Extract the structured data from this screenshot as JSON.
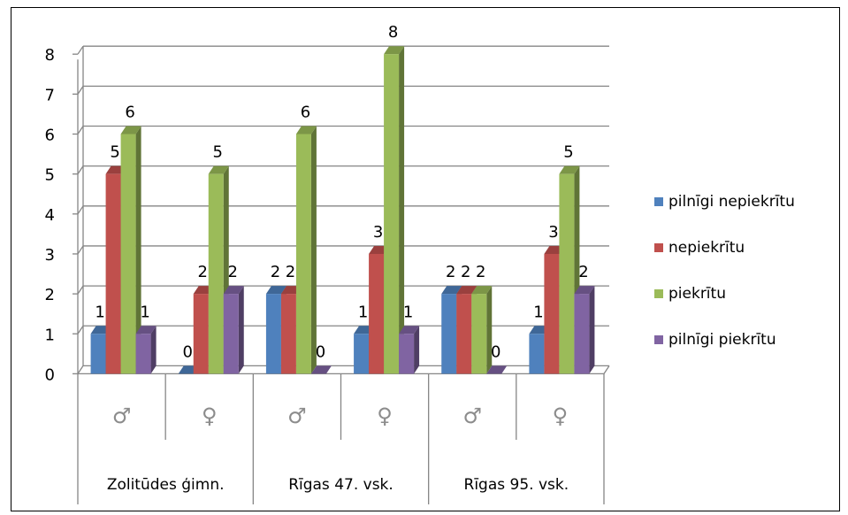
{
  "chart_data": {
    "type": "bar",
    "view": "3d-clustered-column",
    "groups": [
      "Zolitūdes ģimn.",
      "Rīgas 47. vsk.",
      "Rīgas 95. vsk."
    ],
    "subcategories": [
      "♂",
      "♀",
      "♂",
      "♀",
      "♂",
      "♀"
    ],
    "series": [
      {
        "name": "pilnīgi nepiekrītu",
        "color": "#4f81bd",
        "values": [
          1,
          0,
          2,
          1,
          2,
          1
        ]
      },
      {
        "name": "nepiekrītu",
        "color": "#c0504d",
        "values": [
          5,
          2,
          2,
          3,
          2,
          3
        ]
      },
      {
        "name": "piekrītu",
        "color": "#9bbb59",
        "values": [
          6,
          5,
          6,
          8,
          2,
          5
        ]
      },
      {
        "name": "pilnīgi piekrītu",
        "color": "#8064a2",
        "values": [
          1,
          2,
          0,
          1,
          0,
          2
        ]
      }
    ],
    "yticks": [
      "0",
      "1",
      "2",
      "3",
      "4",
      "5",
      "6",
      "7",
      "8"
    ],
    "ylim": [
      0,
      8
    ],
    "grid": true,
    "legend": "right",
    "data_labels": true
  }
}
